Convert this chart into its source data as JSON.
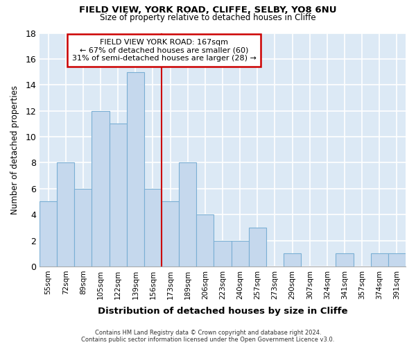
{
  "title1": "FIELD VIEW, YORK ROAD, CLIFFE, SELBY, YO8 6NU",
  "title2": "Size of property relative to detached houses in Cliffe",
  "xlabel": "Distribution of detached houses by size in Cliffe",
  "ylabel": "Number of detached properties",
  "categories": [
    "55sqm",
    "72sqm",
    "89sqm",
    "105sqm",
    "122sqm",
    "139sqm",
    "156sqm",
    "173sqm",
    "189sqm",
    "206sqm",
    "223sqm",
    "240sqm",
    "257sqm",
    "273sqm",
    "290sqm",
    "307sqm",
    "324sqm",
    "341sqm",
    "357sqm",
    "374sqm",
    "391sqm"
  ],
  "values": [
    5,
    8,
    6,
    12,
    11,
    15,
    6,
    5,
    8,
    4,
    2,
    2,
    3,
    0,
    1,
    0,
    0,
    1,
    0,
    1,
    1
  ],
  "bar_color": "#c5d8ed",
  "bar_edge_color": "#7aafd4",
  "property_line_x": 6.5,
  "annotation_text1": "FIELD VIEW YORK ROAD: 167sqm",
  "annotation_text2": "← 67% of detached houses are smaller (60)",
  "annotation_text3": "31% of semi-detached houses are larger (28) →",
  "annotation_box_color": "#cc0000",
  "ylim": [
    0,
    18
  ],
  "yticks": [
    0,
    2,
    4,
    6,
    8,
    10,
    12,
    14,
    16,
    18
  ],
  "footer1": "Contains HM Land Registry data © Crown copyright and database right 2024.",
  "footer2": "Contains public sector information licensed under the Open Government Licence v3.0.",
  "bg_color": "#dce9f5",
  "fig_bg_color": "#ffffff",
  "grid_color": "#ffffff"
}
